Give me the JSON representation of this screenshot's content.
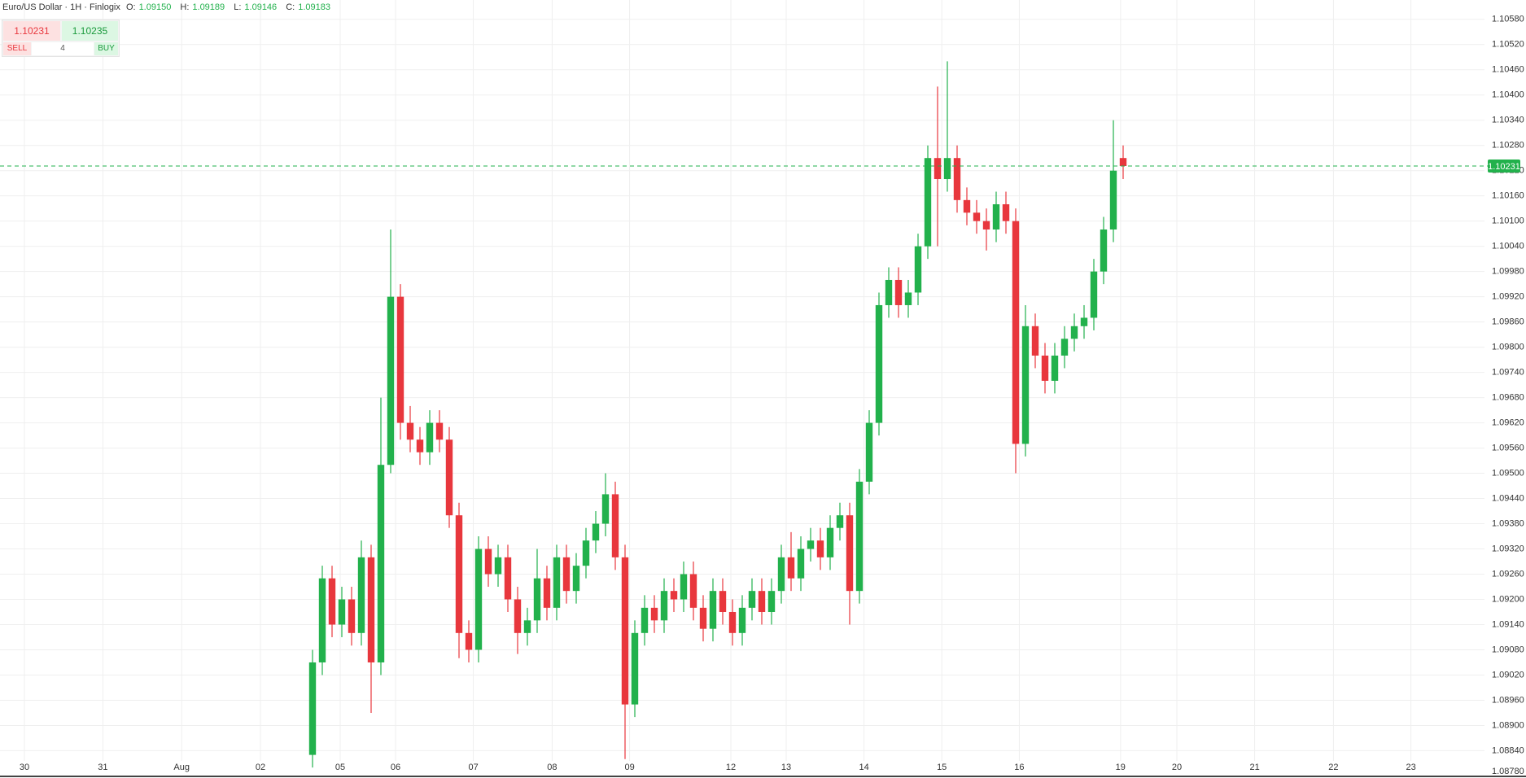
{
  "header": {
    "title": "Euro/US Dollar · 1H · Finlogix",
    "o_label": "O:",
    "o": "1.09150",
    "h_label": "H:",
    "h": "1.09189",
    "l_label": "L:",
    "l": "1.09146",
    "c_label": "C:",
    "c": "1.09183"
  },
  "trade": {
    "sell_price": "1.10231",
    "buy_price": "1.10235",
    "sell": "SELL",
    "quantity": "4",
    "buy": "BUY"
  },
  "chart_data": {
    "type": "candlestick",
    "up_color": "#22b14c",
    "down_color": "#e8373d",
    "grid": true,
    "x": [
      96,
      99,
      102,
      105,
      108,
      111,
      114,
      117,
      120,
      123,
      126,
      129,
      132,
      135,
      138,
      141,
      144,
      147,
      150,
      153,
      156,
      159,
      162,
      165,
      168,
      171,
      174,
      177,
      180,
      183,
      186,
      189,
      192,
      195,
      198,
      201,
      204,
      207,
      210,
      213,
      216,
      219,
      222,
      225,
      228,
      231,
      234,
      237,
      240,
      243,
      246,
      249,
      252,
      255,
      258,
      261,
      264,
      267,
      270,
      273,
      276,
      279,
      282,
      285,
      288,
      291,
      294,
      297,
      300,
      303,
      306,
      309,
      312,
      315,
      318,
      321,
      324,
      327,
      330,
      333,
      336,
      339,
      342,
      345
    ],
    "open": [
      1.0883,
      1.0905,
      1.0925,
      1.0914,
      1.092,
      1.0912,
      1.093,
      1.0905,
      1.0952,
      1.0992,
      1.0962,
      1.0958,
      1.0955,
      1.0962,
      1.0958,
      1.094,
      1.0912,
      1.0908,
      1.0932,
      1.0926,
      1.093,
      1.092,
      1.0912,
      1.0915,
      1.0925,
      1.0918,
      1.093,
      1.0922,
      1.0928,
      1.0934,
      1.0938,
      1.0945,
      1.093,
      1.0895,
      1.0912,
      1.0918,
      1.0915,
      1.0922,
      1.092,
      1.0926,
      1.0918,
      1.0913,
      1.0922,
      1.0917,
      1.0912,
      1.0918,
      1.0922,
      1.0917,
      1.0922,
      1.093,
      1.0925,
      1.0932,
      1.0934,
      1.093,
      1.0937,
      1.094,
      1.0922,
      1.0948,
      1.0962,
      1.099,
      1.0996,
      1.099,
      1.0993,
      1.1004,
      1.1025,
      1.102,
      1.1025,
      1.1015,
      1.1012,
      1.101,
      1.1008,
      1.1014,
      1.101,
      1.0957,
      1.0985,
      1.0978,
      1.0972,
      1.0978,
      1.0982,
      1.0985,
      1.0987,
      1.0998,
      1.1008,
      1.1025
    ],
    "high": [
      1.0908,
      1.0928,
      1.0928,
      1.0923,
      1.0923,
      1.0934,
      1.0933,
      1.0968,
      1.1008,
      1.0995,
      1.0966,
      1.0961,
      1.0965,
      1.0965,
      1.0961,
      1.0943,
      1.0915,
      1.0935,
      1.0935,
      1.0933,
      1.0933,
      1.0923,
      1.0918,
      1.0932,
      1.0928,
      1.0933,
      1.0933,
      1.0931,
      1.0937,
      1.0941,
      1.095,
      1.0948,
      1.0933,
      1.0915,
      1.0921,
      1.0921,
      1.0925,
      1.0925,
      1.0929,
      1.0929,
      1.0921,
      1.0925,
      1.0925,
      1.092,
      1.0921,
      1.0925,
      1.0925,
      1.0925,
      1.0933,
      1.0936,
      1.0935,
      1.0937,
      1.0937,
      1.094,
      1.0943,
      1.0943,
      1.0951,
      1.0965,
      1.0993,
      1.0999,
      1.0999,
      1.0996,
      1.1007,
      1.1028,
      1.1042,
      1.1048,
      1.1028,
      1.1018,
      1.1015,
      1.1013,
      1.1017,
      1.1017,
      1.1013,
      1.099,
      1.0988,
      1.0981,
      1.0981,
      1.0985,
      1.0988,
      1.099,
      1.1001,
      1.1011,
      1.1034,
      1.1028
    ],
    "low": [
      1.088,
      1.0902,
      1.0911,
      1.0911,
      1.0909,
      1.0909,
      1.0893,
      1.0902,
      1.095,
      1.0958,
      1.0955,
      1.0952,
      1.0952,
      1.0955,
      1.0937,
      1.0906,
      1.0905,
      1.0905,
      1.0923,
      1.0923,
      1.0917,
      1.0907,
      1.0909,
      1.0912,
      1.0915,
      1.0915,
      1.0919,
      1.0919,
      1.0925,
      1.0931,
      1.0935,
      1.0927,
      1.0882,
      1.0892,
      1.0909,
      1.0912,
      1.0912,
      1.0917,
      1.0917,
      1.0915,
      1.091,
      1.091,
      1.0914,
      1.0909,
      1.0909,
      1.0915,
      1.0914,
      1.0914,
      1.0919,
      1.0922,
      1.0922,
      1.0929,
      1.0927,
      1.0927,
      1.0934,
      1.0914,
      1.0919,
      1.0945,
      1.0959,
      1.0987,
      1.0987,
      1.0987,
      1.099,
      1.1001,
      1.1004,
      1.1017,
      1.1012,
      1.1009,
      1.1007,
      1.1003,
      1.1005,
      1.1007,
      1.095,
      1.0954,
      1.0975,
      1.0969,
      1.0969,
      1.0975,
      1.0979,
      1.0982,
      1.0984,
      1.0995,
      1.1005,
      1.102
    ],
    "close": [
      1.0905,
      1.0925,
      1.0914,
      1.092,
      1.0912,
      1.093,
      1.0905,
      1.0952,
      1.0992,
      1.0962,
      1.0958,
      1.0955,
      1.0962,
      1.0958,
      1.094,
      1.0912,
      1.0908,
      1.0932,
      1.0926,
      1.093,
      1.092,
      1.0912,
      1.0915,
      1.0925,
      1.0918,
      1.093,
      1.0922,
      1.0928,
      1.0934,
      1.0938,
      1.0945,
      1.093,
      1.0895,
      1.0912,
      1.0918,
      1.0915,
      1.0922,
      1.092,
      1.0926,
      1.0918,
      1.0913,
      1.0922,
      1.0917,
      1.0912,
      1.0918,
      1.0922,
      1.0917,
      1.0922,
      1.093,
      1.0925,
      1.0932,
      1.0934,
      1.093,
      1.0937,
      1.094,
      1.0922,
      1.0948,
      1.0962,
      1.099,
      1.0996,
      1.099,
      1.0993,
      1.1004,
      1.1025,
      1.102,
      1.1025,
      1.1015,
      1.1012,
      1.101,
      1.1008,
      1.1014,
      1.101,
      1.0957,
      1.0985,
      1.0978,
      1.0972,
      1.0978,
      1.0982,
      1.0985,
      1.0987,
      1.0998,
      1.1008,
      1.1022,
      1.10231
    ],
    "last_price": {
      "value": 1.10231,
      "label": "1.10231"
    },
    "xlim": [
      0,
      456
    ],
    "ylim": [
      1.08775,
      1.10626
    ],
    "xticks": [
      {
        "value": 7.5,
        "label": "30"
      },
      {
        "value": 31.6,
        "label": "31"
      },
      {
        "value": 55.8,
        "label": "Aug"
      },
      {
        "value": 80,
        "label": "02"
      },
      {
        "value": 104.5,
        "label": "05"
      },
      {
        "value": 121.5,
        "label": "06"
      },
      {
        "value": 145.4,
        "label": "07"
      },
      {
        "value": 169.6,
        "label": "08"
      },
      {
        "value": 193.4,
        "label": "09"
      },
      {
        "value": 224.5,
        "label": "12"
      },
      {
        "value": 241.5,
        "label": "13"
      },
      {
        "value": 265.4,
        "label": "14"
      },
      {
        "value": 289.3,
        "label": "15"
      },
      {
        "value": 313.1,
        "label": "16"
      },
      {
        "value": 344.2,
        "label": "19"
      },
      {
        "value": 361.5,
        "label": "20"
      },
      {
        "value": 385.4,
        "label": "21"
      },
      {
        "value": 409.6,
        "label": "22"
      },
      {
        "value": 433.4,
        "label": "23"
      }
    ],
    "yticks": [
      {
        "value": 1.1058,
        "label": "1.10580"
      },
      {
        "value": 1.1052,
        "label": "1.10520"
      },
      {
        "value": 1.1046,
        "label": "1.10460"
      },
      {
        "value": 1.104,
        "label": "1.10400"
      },
      {
        "value": 1.1034,
        "label": "1.10340"
      },
      {
        "value": 1.1028,
        "label": "1.10280"
      },
      {
        "value": 1.1022,
        "label": "1.10220"
      },
      {
        "value": 1.1016,
        "label": "1.10160"
      },
      {
        "value": 1.101,
        "label": "1.10100"
      },
      {
        "value": 1.1004,
        "label": "1.10040"
      },
      {
        "value": 1.0998,
        "label": "1.09980"
      },
      {
        "value": 1.0992,
        "label": "1.09920"
      },
      {
        "value": 1.0986,
        "label": "1.09860"
      },
      {
        "value": 1.098,
        "label": "1.09800"
      },
      {
        "value": 1.0974,
        "label": "1.09740"
      },
      {
        "value": 1.0968,
        "label": "1.09680"
      },
      {
        "value": 1.0962,
        "label": "1.09620"
      },
      {
        "value": 1.0956,
        "label": "1.09560"
      },
      {
        "value": 1.095,
        "label": "1.09500"
      },
      {
        "value": 1.0944,
        "label": "1.09440"
      },
      {
        "value": 1.0938,
        "label": "1.09380"
      },
      {
        "value": 1.0932,
        "label": "1.09320"
      },
      {
        "value": 1.0926,
        "label": "1.09260"
      },
      {
        "value": 1.092,
        "label": "1.09200"
      },
      {
        "value": 1.0914,
        "label": "1.09140"
      },
      {
        "value": 1.0908,
        "label": "1.09080"
      },
      {
        "value": 1.0902,
        "label": "1.09020"
      },
      {
        "value": 1.0896,
        "label": "1.08960"
      },
      {
        "value": 1.089,
        "label": "1.08900"
      },
      {
        "value": 1.0884,
        "label": "1.08840"
      },
      {
        "value": 1.0878,
        "label": "1.08780"
      }
    ]
  }
}
